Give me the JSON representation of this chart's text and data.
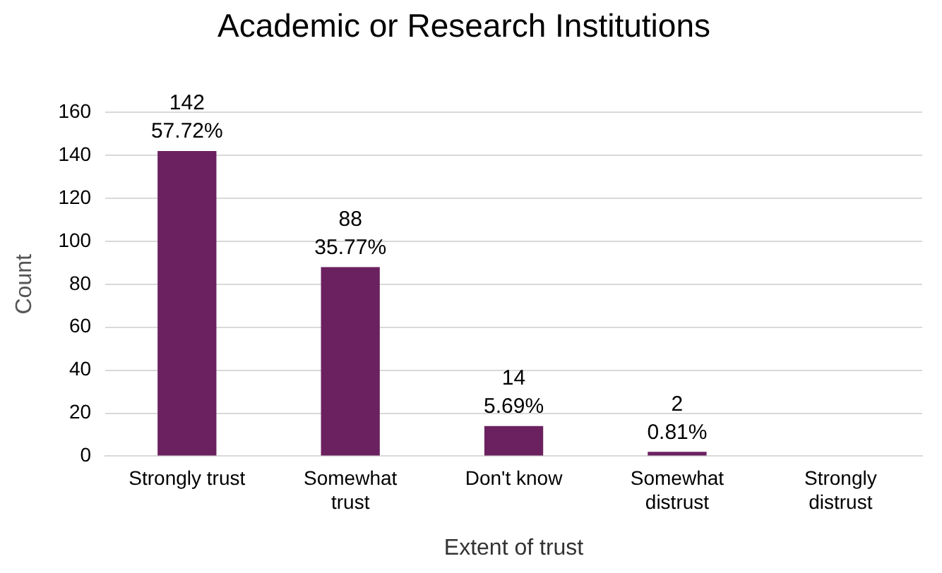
{
  "chart_data": {
    "type": "bar",
    "title": "Academic or Research Institutions",
    "xlabel": "Extent of trust",
    "ylabel": "Count",
    "categories": [
      "Strongly trust",
      "Somewhat trust",
      "Don't know",
      "Somewhat distrust",
      "Strongly distrust"
    ],
    "values": [
      142,
      88,
      14,
      2,
      0
    ],
    "color": "#6b2160",
    "value_labels": [
      "142\n57.72%",
      "88\n35.77%",
      "14\n5.69%",
      "2\n0.81%",
      null
    ],
    "ylim": [
      0,
      160
    ],
    "yticks": [
      0,
      20,
      40,
      60,
      80,
      100,
      120,
      140,
      160
    ],
    "grid": "y",
    "legend": false
  }
}
